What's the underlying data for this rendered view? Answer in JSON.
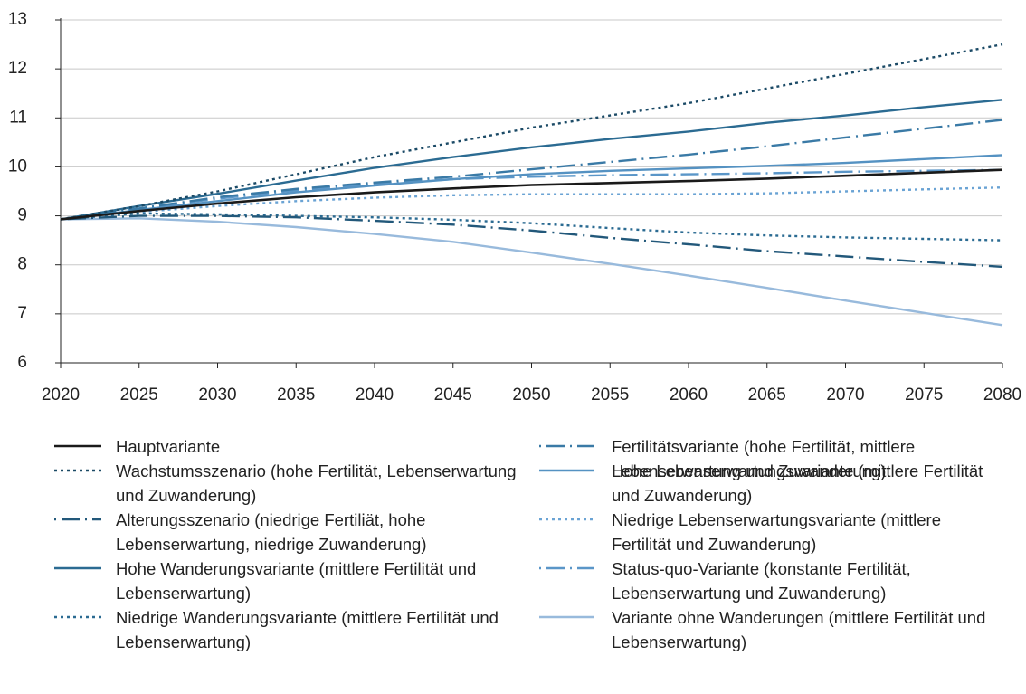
{
  "chart_data": {
    "type": "line",
    "x": [
      2020,
      2025,
      2030,
      2035,
      2040,
      2045,
      2050,
      2055,
      2060,
      2065,
      2070,
      2075,
      2080
    ],
    "xlim": [
      2020,
      2080
    ],
    "xticks": [
      2020,
      2025,
      2030,
      2035,
      2040,
      2045,
      2050,
      2055,
      2060,
      2065,
      2070,
      2075,
      2080
    ],
    "ylim": [
      6,
      13
    ],
    "yticks": [
      6,
      7,
      8,
      9,
      10,
      11,
      12,
      13
    ],
    "grid": true,
    "series": [
      {
        "name": "Hauptvariante",
        "color": "#1a1a1a",
        "dash": "solid",
        "values": [
          8.93,
          9.1,
          9.25,
          9.38,
          9.48,
          9.56,
          9.63,
          9.67,
          9.71,
          9.76,
          9.82,
          9.88,
          9.94
        ]
      },
      {
        "name": "Wachstumsszenario (hohe Fertilität, Lebenserwartung und Zuwanderung)",
        "color": "#1b4a66",
        "dash": "dotted",
        "values": [
          8.93,
          9.2,
          9.5,
          9.85,
          10.2,
          10.5,
          10.8,
          11.05,
          11.3,
          11.6,
          11.9,
          12.2,
          12.5
        ]
      },
      {
        "name": "Alterungsszenario (niedrige Fertiliät, hohe Lebenserwartung, niedrige Zuwanderung)",
        "color": "#22587a",
        "dash": "dashdot",
        "values": [
          8.93,
          9.0,
          9.0,
          8.97,
          8.9,
          8.82,
          8.7,
          8.55,
          8.42,
          8.28,
          8.17,
          8.06,
          7.96
        ]
      },
      {
        "name": "Hohe Wanderungsvariante (mittlere Fertilität und Lebenserwartung)",
        "color": "#2b6b92",
        "dash": "solid",
        "values": [
          8.93,
          9.2,
          9.45,
          9.72,
          9.98,
          10.2,
          10.4,
          10.57,
          10.72,
          10.9,
          11.05,
          11.22,
          11.37
        ]
      },
      {
        "name": "Niedrige Wanderungsvariante (mittlere Fertilität und Lebenserwartung)",
        "color": "#2b6b92",
        "dash": "dotted",
        "values": [
          8.93,
          9.05,
          9.03,
          9.0,
          8.97,
          8.92,
          8.85,
          8.75,
          8.66,
          8.6,
          8.56,
          8.53,
          8.5
        ]
      },
      {
        "name": "Fertilitätsvariante (hohe Fertilität, mittlere Lebenserwartung und Zuwanderung)",
        "color": "#3a7aa6",
        "dash": "dashdot",
        "values": [
          8.93,
          9.15,
          9.38,
          9.55,
          9.68,
          9.8,
          9.95,
          10.1,
          10.25,
          10.42,
          10.6,
          10.78,
          10.96
        ]
      },
      {
        "name": "Hohe Lebenserwartungsvariante (mittlere Fertilität und Zuwanderung)",
        "color": "#5592c2",
        "dash": "solid",
        "values": [
          8.93,
          9.12,
          9.3,
          9.48,
          9.62,
          9.75,
          9.85,
          9.92,
          9.97,
          10.02,
          10.08,
          10.16,
          10.24
        ]
      },
      {
        "name": "Niedrige Lebenserwartungsvariante (mittlere Fertilität und Zuwanderung)",
        "color": "#6aa3d4",
        "dash": "dotted",
        "values": [
          8.93,
          9.08,
          9.2,
          9.3,
          9.37,
          9.42,
          9.44,
          9.44,
          9.44,
          9.46,
          9.5,
          9.54,
          9.58
        ]
      },
      {
        "name": "Status-quo-Variante (konstante Fertilität, Lebenserwartung und Zuwanderung)",
        "color": "#5a96c8",
        "dash": "dashdot",
        "values": [
          8.93,
          9.15,
          9.35,
          9.52,
          9.65,
          9.75,
          9.8,
          9.83,
          9.85,
          9.87,
          9.9,
          9.92,
          9.94
        ]
      },
      {
        "name": "Variante ohne Wanderungen (mittlere Fertilität und Lebenserwartung)",
        "color": "#98badc",
        "dash": "solid",
        "values": [
          8.93,
          8.95,
          8.88,
          8.77,
          8.63,
          8.47,
          8.25,
          8.02,
          7.78,
          7.53,
          7.27,
          7.02,
          6.77
        ]
      }
    ]
  }
}
